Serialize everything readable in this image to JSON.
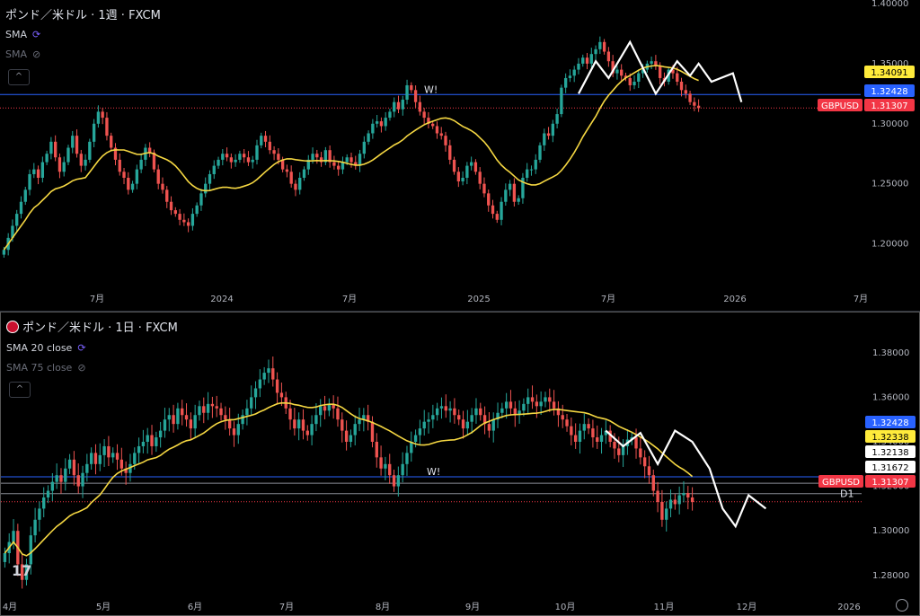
{
  "top": {
    "title": "ポンド／米ドル · 1週 · FXCM",
    "indicators": [
      {
        "label": "SMA",
        "icon": "refresh-icon",
        "dim": false
      },
      {
        "label": "SMA",
        "icon": "eye-off-icon",
        "dim": true
      }
    ],
    "y_ticks": [
      "1.40000",
      "1.35000",
      "1.30000",
      "1.25000",
      "1.20000"
    ],
    "x_ticks": [
      "7月",
      "2024",
      "7月",
      "2025",
      "7月",
      "2026",
      "7月"
    ],
    "tags": [
      {
        "text": "1.34091",
        "bg": "#ffeb3b",
        "fg": "#000000"
      },
      {
        "text": "1.32428",
        "bg": "#2962ff",
        "fg": "#ffffff"
      },
      {
        "text": "1.31307",
        "bg": "#f23645",
        "fg": "#ffffff",
        "label": "GBPUSD"
      }
    ],
    "annotation": "W!"
  },
  "bottom": {
    "title": "ポンド／米ドル · 1日 · FXCM",
    "indicators": [
      {
        "label": "SMA 20 close",
        "icon": "refresh-icon",
        "dim": false
      },
      {
        "label": "SMA 75 close",
        "icon": "eye-off-icon",
        "dim": true
      }
    ],
    "y_ticks": [
      "1.38000",
      "1.36000",
      "1.34000",
      "1.32000",
      "1.30000",
      "1.28000"
    ],
    "x_ticks": [
      "4月",
      "5月",
      "6月",
      "7月",
      "8月",
      "9月",
      "10月",
      "11月",
      "12月",
      "2026"
    ],
    "tags": [
      {
        "text": "1.32428",
        "bg": "#2962ff",
        "fg": "#ffffff"
      },
      {
        "text": "1.32338",
        "bg": "#ffeb3b",
        "fg": "#000000"
      },
      {
        "text": "1.32138",
        "bg": "#ffffff",
        "fg": "#000000"
      },
      {
        "text": "1.31672",
        "bg": "#ffffff",
        "fg": "#000000"
      },
      {
        "text": "1.31307",
        "bg": "#f23645",
        "fg": "#ffffff",
        "label": "GBPUSD"
      }
    ],
    "annotation": "W!",
    "d1_label": "D1"
  },
  "colors": {
    "up": "#26a69a",
    "down": "#ef5350",
    "sma": "#f5d742",
    "hline": "#2962ff",
    "price": "#f23645",
    "zig": "#ffffff"
  },
  "chart_data": [
    {
      "type": "candlestick",
      "title": "ポンド／米ドル · 1週 · FXCM",
      "ylim": [
        1.175,
        1.4
      ],
      "y_ticks": [
        1.4,
        1.35,
        1.3,
        1.25,
        1.2
      ],
      "x_ticks": [
        "7月",
        "2024",
        "7月",
        "2025",
        "7月",
        "2026",
        "7月"
      ],
      "closes": [
        1.195,
        1.205,
        1.215,
        1.225,
        1.235,
        1.245,
        1.258,
        1.262,
        1.255,
        1.268,
        1.275,
        1.285,
        1.272,
        1.26,
        1.268,
        1.28,
        1.29,
        1.275,
        1.265,
        1.27,
        1.285,
        1.3,
        1.31,
        1.305,
        1.29,
        1.28,
        1.27,
        1.26,
        1.255,
        1.245,
        1.25,
        1.262,
        1.27,
        1.28,
        1.276,
        1.262,
        1.25,
        1.245,
        1.235,
        1.228,
        1.225,
        1.22,
        1.218,
        1.215,
        1.225,
        1.232,
        1.242,
        1.25,
        1.258,
        1.265,
        1.27,
        1.275,
        1.272,
        1.268,
        1.27,
        1.275,
        1.272,
        1.268,
        1.27,
        1.282,
        1.29,
        1.285,
        1.278,
        1.275,
        1.27,
        1.262,
        1.26,
        1.25,
        1.245,
        1.255,
        1.262,
        1.27,
        1.275,
        1.272,
        1.268,
        1.278,
        1.268,
        1.265,
        1.262,
        1.268,
        1.272,
        1.268,
        1.265,
        1.275,
        1.285,
        1.292,
        1.3,
        1.302,
        1.298,
        1.305,
        1.31,
        1.318,
        1.312,
        1.32,
        1.332,
        1.328,
        1.318,
        1.31,
        1.305,
        1.3,
        1.298,
        1.292,
        1.29,
        1.282,
        1.27,
        1.26,
        1.252,
        1.255,
        1.265,
        1.268,
        1.26,
        1.25,
        1.242,
        1.232,
        1.225,
        1.22,
        1.235,
        1.245,
        1.25,
        1.235,
        1.238,
        1.255,
        1.262,
        1.262,
        1.27,
        1.282,
        1.292,
        1.29,
        1.3,
        1.308,
        1.33,
        1.338,
        1.34,
        1.345,
        1.35,
        1.355,
        1.35,
        1.358,
        1.362,
        1.368,
        1.36,
        1.352,
        1.342,
        1.345,
        1.34,
        1.338,
        1.332,
        1.335,
        1.342,
        1.345,
        1.35,
        1.352,
        1.348,
        1.338,
        1.335,
        1.345,
        1.342,
        1.335,
        1.328,
        1.325,
        1.318,
        1.315,
        1.313
      ],
      "sma": {
        "start": 1.2,
        "end": 1.34091
      },
      "hline": 1.32428,
      "last": 1.31307
    },
    {
      "type": "candlestick",
      "title": "ポンド／米ドル · 1日 · FXCM",
      "ylim": [
        1.265,
        1.39
      ],
      "y_ticks": [
        1.38,
        1.36,
        1.34,
        1.32,
        1.3,
        1.28
      ],
      "x_ticks": [
        "4月",
        "5月",
        "6月",
        "7月",
        "8月",
        "9月",
        "10月",
        "11月",
        "12月",
        "2026"
      ],
      "closes": [
        1.29,
        1.295,
        1.3,
        1.285,
        1.278,
        1.285,
        1.298,
        1.305,
        1.31,
        1.315,
        1.318,
        1.322,
        1.325,
        1.322,
        1.328,
        1.332,
        1.325,
        1.32,
        1.326,
        1.33,
        1.335,
        1.33,
        1.334,
        1.338,
        1.333,
        1.335,
        1.332,
        1.328,
        1.326,
        1.33,
        1.335,
        1.338,
        1.34,
        1.343,
        1.338,
        1.342,
        1.345,
        1.35,
        1.352,
        1.348,
        1.355,
        1.352,
        1.35,
        1.346,
        1.352,
        1.356,
        1.353,
        1.357,
        1.356,
        1.355,
        1.352,
        1.35,
        1.346,
        1.343,
        1.348,
        1.352,
        1.355,
        1.36,
        1.364,
        1.368,
        1.371,
        1.373,
        1.368,
        1.362,
        1.36,
        1.355,
        1.35,
        1.346,
        1.35,
        1.345,
        1.343,
        1.348,
        1.352,
        1.356,
        1.354,
        1.357,
        1.355,
        1.35,
        1.345,
        1.34,
        1.343,
        1.348,
        1.35,
        1.352,
        1.349,
        1.34,
        1.333,
        1.328,
        1.33,
        1.325,
        1.32,
        1.325,
        1.33,
        1.335,
        1.34,
        1.343,
        1.346,
        1.349,
        1.35,
        1.352,
        1.355,
        1.356,
        1.354,
        1.355,
        1.352,
        1.35,
        1.346,
        1.349,
        1.352,
        1.355,
        1.352,
        1.348,
        1.345,
        1.35,
        1.353,
        1.355,
        1.358,
        1.355,
        1.352,
        1.354,
        1.357,
        1.36,
        1.358,
        1.356,
        1.358,
        1.36,
        1.358,
        1.355,
        1.352,
        1.35,
        1.347,
        1.343,
        1.34,
        1.345,
        1.348,
        1.346,
        1.342,
        1.34,
        1.343,
        1.345,
        1.34,
        1.337,
        1.334,
        1.338,
        1.341,
        1.342,
        1.337,
        1.333,
        1.329,
        1.325,
        1.318,
        1.313,
        1.305,
        1.31,
        1.314,
        1.312,
        1.316,
        1.317,
        1.315,
        1.313
      ],
      "sma": {
        "start": 1.285,
        "end": 1.32338
      },
      "hline": 1.32428,
      "levels": [
        1.32138,
        1.31672
      ],
      "last": 1.31307
    }
  ]
}
